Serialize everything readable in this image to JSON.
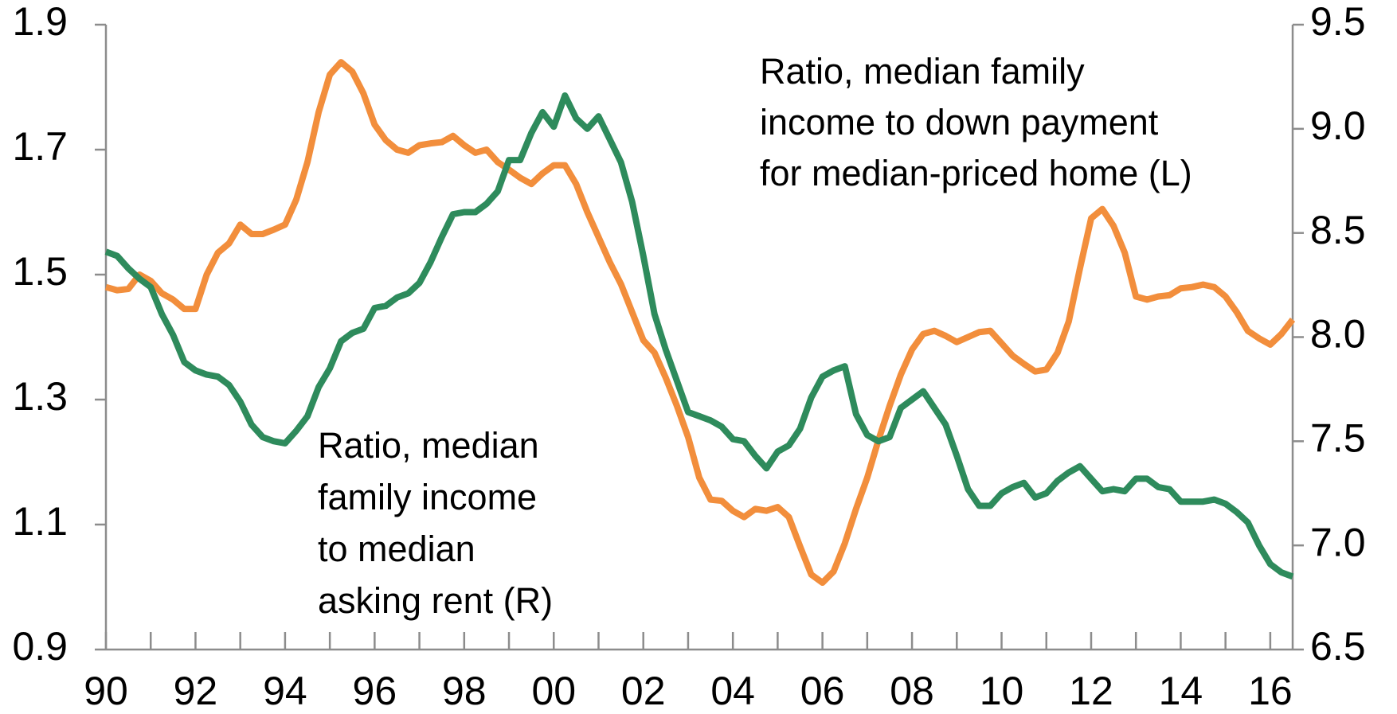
{
  "chart_data": {
    "type": "line",
    "annotations": [
      {
        "lines": [
          "Ratio, median family",
          "income to down payment",
          "for median-priced home (L)"
        ]
      },
      {
        "lines": [
          "Ratio, median",
          "family income",
          "to median",
          "asking rent (R)"
        ]
      }
    ],
    "x": [
      1990,
      1990.25,
      1990.5,
      1990.75,
      1991,
      1991.25,
      1991.5,
      1991.75,
      1992,
      1992.25,
      1992.5,
      1992.75,
      1993,
      1993.25,
      1993.5,
      1993.75,
      1994,
      1994.25,
      1994.5,
      1994.75,
      1995,
      1995.25,
      1995.5,
      1995.75,
      1996,
      1996.25,
      1996.5,
      1996.75,
      1997,
      1997.25,
      1997.5,
      1997.75,
      1998,
      1998.25,
      1998.5,
      1998.75,
      1999,
      1999.25,
      1999.5,
      1999.75,
      2000,
      2000.25,
      2000.5,
      2000.75,
      2001,
      2001.25,
      2001.5,
      2001.75,
      2002,
      2002.25,
      2002.5,
      2002.75,
      2003,
      2003.25,
      2003.5,
      2003.75,
      2004,
      2004.25,
      2004.5,
      2004.75,
      2005,
      2005.25,
      2005.5,
      2005.75,
      2006,
      2006.25,
      2006.5,
      2006.75,
      2007,
      2007.25,
      2007.5,
      2007.75,
      2008,
      2008.25,
      2008.5,
      2008.75,
      2009,
      2009.25,
      2009.5,
      2009.75,
      2010,
      2010.25,
      2010.5,
      2010.75,
      2011,
      2011.25,
      2011.5,
      2011.75,
      2012,
      2012.25,
      2012.5,
      2012.75,
      2013,
      2013.25,
      2013.5,
      2013.75,
      2014,
      2014.25,
      2014.5,
      2014.75,
      2015,
      2015.25,
      2015.5,
      2015.75,
      2016,
      2016.25,
      2016.5
    ],
    "series": [
      {
        "color": "#f28e3c",
        "values": [
          1.48,
          1.475,
          1.477,
          1.5,
          1.49,
          1.47,
          1.46,
          1.445,
          1.445,
          1.5,
          1.535,
          1.55,
          1.58,
          1.565,
          1.565,
          1.572,
          1.58,
          1.62,
          1.68,
          1.76,
          1.82,
          1.84,
          1.825,
          1.79,
          1.74,
          1.715,
          1.7,
          1.695,
          1.707,
          1.71,
          1.712,
          1.722,
          1.707,
          1.695,
          1.7,
          1.68,
          1.668,
          1.655,
          1.645,
          1.662,
          1.675,
          1.675,
          1.645,
          1.6,
          1.56,
          1.52,
          1.485,
          1.44,
          1.395,
          1.375,
          1.335,
          1.29,
          1.24,
          1.175,
          1.14,
          1.138,
          1.122,
          1.112,
          1.125,
          1.122,
          1.128,
          1.112,
          1.065,
          1.02,
          1.007,
          1.025,
          1.07,
          1.125,
          1.175,
          1.235,
          1.29,
          1.34,
          1.38,
          1.405,
          1.41,
          1.402,
          1.392,
          1.4,
          1.408,
          1.41,
          1.39,
          1.37,
          1.357,
          1.345,
          1.348,
          1.375,
          1.425,
          1.51,
          1.59,
          1.605,
          1.578,
          1.535,
          1.465,
          1.46,
          1.465,
          1.467,
          1.478,
          1.48,
          1.484,
          1.48,
          1.465,
          1.44,
          1.41,
          1.398,
          1.388,
          1.405,
          1.428
        ]
      },
      {
        "color": "#2e8b5c",
        "axis": "y2",
        "values": [
          8.41,
          8.39,
          8.33,
          8.28,
          8.24,
          8.11,
          8.01,
          7.88,
          7.84,
          7.82,
          7.81,
          7.77,
          7.69,
          7.58,
          7.52,
          7.5,
          7.49,
          7.55,
          7.62,
          7.76,
          7.85,
          7.98,
          8.02,
          8.04,
          8.14,
          8.15,
          8.19,
          8.21,
          8.26,
          8.36,
          8.48,
          8.59,
          8.6,
          8.6,
          8.64,
          8.7,
          8.85,
          8.85,
          8.98,
          9.08,
          9.01,
          9.16,
          9.05,
          9.0,
          9.06,
          8.95,
          8.84,
          8.65,
          8.39,
          8.11,
          7.94,
          7.79,
          7.64,
          7.62,
          7.6,
          7.57,
          7.51,
          7.5,
          7.43,
          7.37,
          7.45,
          7.48,
          7.56,
          7.71,
          7.81,
          7.84,
          7.86,
          7.63,
          7.53,
          7.5,
          7.52,
          7.66,
          7.7,
          7.74,
          7.66,
          7.58,
          7.43,
          7.27,
          7.19,
          7.19,
          7.25,
          7.28,
          7.3,
          7.23,
          7.25,
          7.31,
          7.35,
          7.38,
          7.32,
          7.26,
          7.27,
          7.26,
          7.32,
          7.32,
          7.28,
          7.27,
          7.21,
          7.21,
          7.21,
          7.22,
          7.2,
          7.16,
          7.11,
          7.0,
          6.91,
          6.87,
          6.85
        ]
      }
    ],
    "xlim": [
      1990,
      2016.5
    ],
    "xticks": [
      {
        "value": 1990,
        "label": "90"
      },
      {
        "value": 1992,
        "label": "92"
      },
      {
        "value": 1994,
        "label": "94"
      },
      {
        "value": 1996,
        "label": "96"
      },
      {
        "value": 1998,
        "label": "98"
      },
      {
        "value": 2000,
        "label": "00"
      },
      {
        "value": 2002,
        "label": "02"
      },
      {
        "value": 2004,
        "label": "04"
      },
      {
        "value": 2006,
        "label": "06"
      },
      {
        "value": 2008,
        "label": "08"
      },
      {
        "value": 2010,
        "label": "10"
      },
      {
        "value": 2012,
        "label": "12"
      },
      {
        "value": 2014,
        "label": "14"
      },
      {
        "value": 2016,
        "label": "16"
      }
    ],
    "xminorticks": [
      1991,
      1993,
      1995,
      1997,
      1999,
      2001,
      2003,
      2005,
      2007,
      2009,
      2011,
      2013,
      2015
    ],
    "ylim": [
      0.9,
      1.9
    ],
    "yticks": [
      0.9,
      1.1,
      1.3,
      1.5,
      1.7,
      1.9
    ],
    "y2lim": [
      6.5,
      9.5
    ],
    "y2ticks": [
      {
        "value": 6.5,
        "label": "6.5"
      },
      {
        "value": 7,
        "label": "7.0"
      },
      {
        "value": 7.5,
        "label": "7.5"
      },
      {
        "value": 8,
        "label": "8.0"
      },
      {
        "value": 8.5,
        "label": "8.5"
      },
      {
        "value": 9,
        "label": "9.0"
      },
      {
        "value": 9.5,
        "label": "9.5"
      }
    ]
  }
}
